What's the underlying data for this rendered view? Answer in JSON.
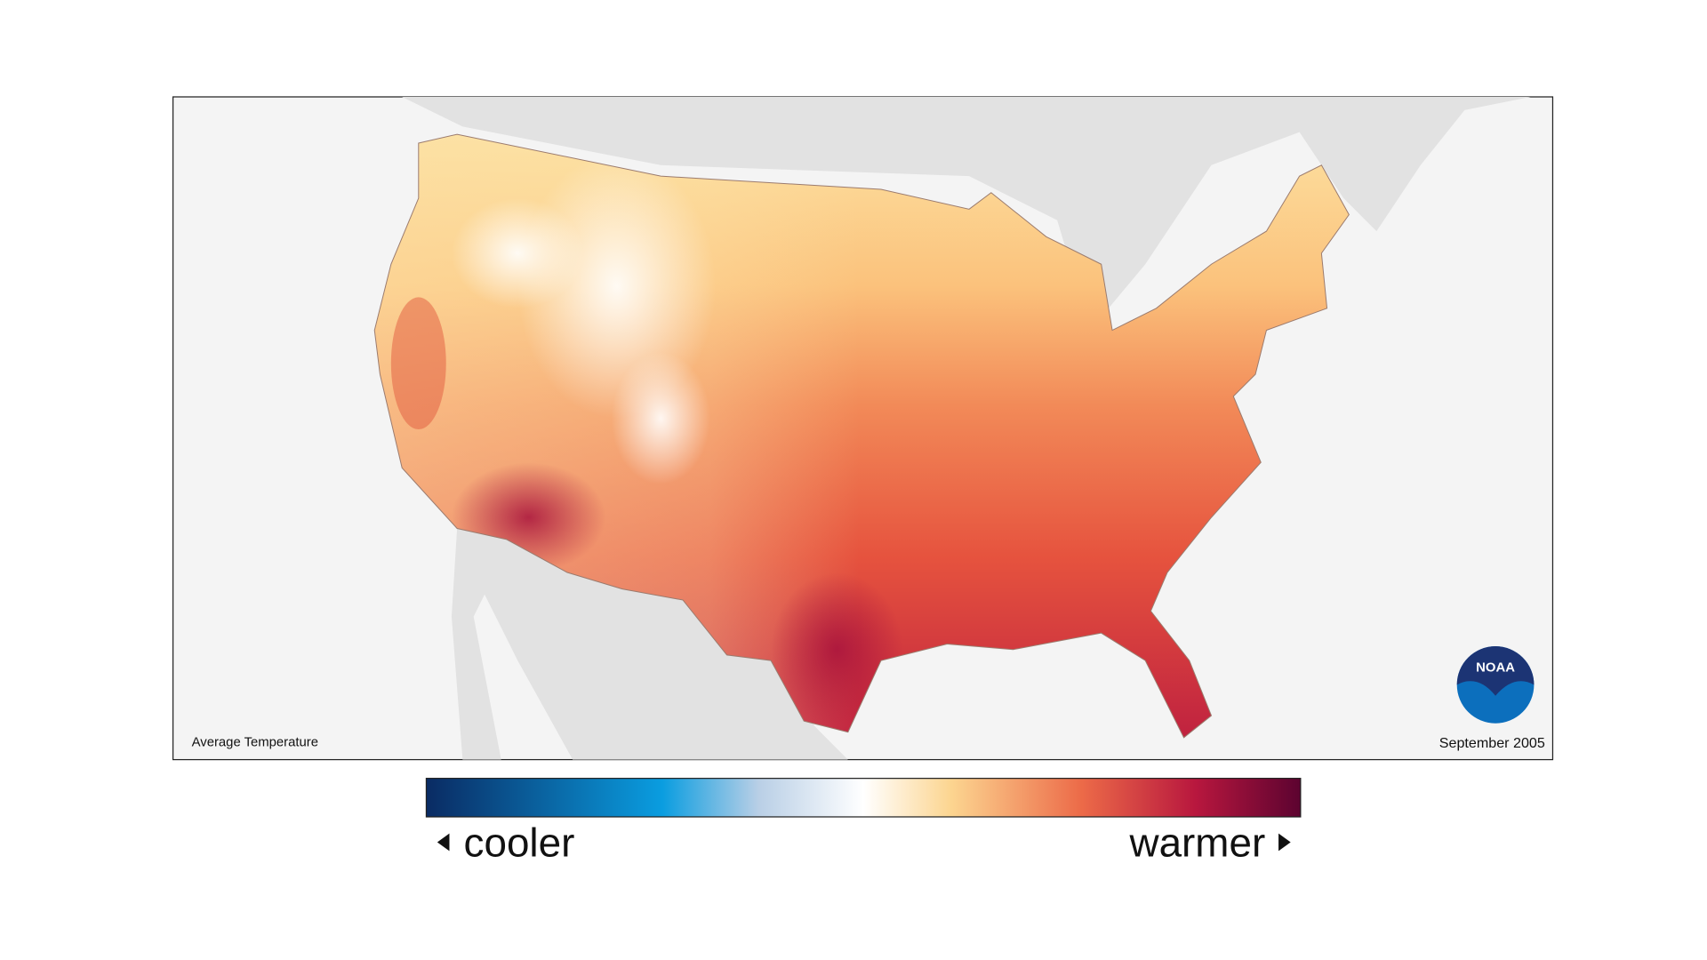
{
  "map": {
    "label": "Average Temperature",
    "date": "September 2005",
    "logo": "NOAA"
  },
  "legend": {
    "low_label": "cooler",
    "high_label": "warmer"
  }
}
